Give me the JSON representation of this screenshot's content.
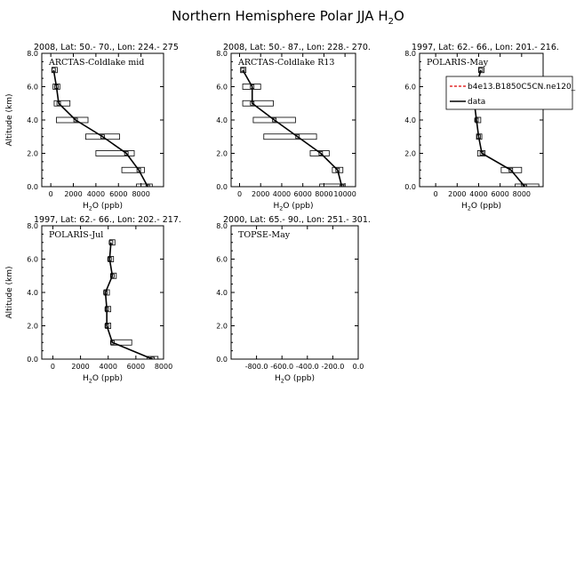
{
  "title": "Northern Hemisphere Polar JJA",
  "title_species": "H",
  "title_sub": "2",
  "title_end": "O",
  "xlabel_prefix": "H",
  "xlabel_sub": "2",
  "xlabel_suffix": "O (ppb)",
  "ylabel": "Altitude (km)",
  "legend": {
    "model_label": "b4e13.B1850C5CN.ne120_",
    "data_label": "data",
    "model_color": "#dd0000",
    "data_color": "#000000"
  },
  "chart_data": [
    {
      "type": "line",
      "header": "2008, Lat:  50.- 70., Lon: 224.- 275",
      "label": "ARCTAS-Coldlake mid",
      "xlim": [
        -800,
        10000
      ],
      "xticks": [
        0,
        2000,
        4000,
        6000,
        8000
      ],
      "ylim": [
        0,
        8
      ],
      "yticks": [
        "0.0",
        "2.0",
        "4.0",
        "6.0",
        "8.0"
      ],
      "series": [
        {
          "x": [
            8600,
            7800,
            6700,
            4600,
            2200,
            700,
            500,
            250
          ],
          "y": [
            0,
            1,
            2,
            3,
            4,
            5,
            6,
            7
          ],
          "xmin": [
            7600,
            6300,
            4000,
            3100,
            500,
            300,
            200,
            100
          ],
          "xmax": [
            9000,
            8300,
            7400,
            6100,
            3300,
            1700,
            800,
            300
          ]
        }
      ],
      "show_legend": false
    },
    {
      "type": "line",
      "header": "2008, Lat:  50.- 87., Lon: 228.- 270.",
      "label": "ARCTAS-Coldlake R13",
      "xlim": [
        -800,
        11000
      ],
      "xticks": [
        0,
        2000,
        4000,
        6000,
        8000,
        10000
      ],
      "ylim": [
        0,
        8
      ],
      "yticks": [
        "0.0",
        "2.0",
        "4.0",
        "6.0",
        "8.0"
      ],
      "series": [
        {
          "x": [
            9700,
            9300,
            7700,
            5500,
            3300,
            1200,
            1200,
            300
          ],
          "y": [
            0,
            1,
            2,
            3,
            4,
            5,
            6,
            7
          ],
          "xmin": [
            7600,
            8800,
            6700,
            2300,
            1300,
            300,
            300,
            100
          ],
          "xmax": [
            10000,
            9800,
            8500,
            7300,
            5300,
            3200,
            2000,
            400
          ]
        }
      ],
      "show_legend": false
    },
    {
      "type": "line",
      "header": "1997, Lat: 62.- 66., Lon: 201.- 216.",
      "label": "POLARIS-May",
      "xlim": [
        -1500,
        10000
      ],
      "xticks": [
        0,
        2000,
        4000,
        6000,
        8000
      ],
      "ylim": [
        0,
        8
      ],
      "yticks": [
        "0.0",
        "2.0",
        "4.0",
        "6.0",
        "8.0"
      ],
      "series": [
        {
          "x": [
            8300,
            7000,
            4300,
            4000,
            3800,
            3600,
            3800,
            4200
          ],
          "y": [
            0,
            1,
            2,
            3,
            4,
            5,
            6,
            7
          ],
          "xmin": [
            7400,
            6100,
            3900,
            3800,
            3700,
            3400,
            3600,
            4000
          ],
          "xmax": [
            9600,
            8000,
            4600,
            4200,
            3900,
            3900,
            4000,
            4400
          ]
        }
      ],
      "show_legend": true
    },
    {
      "type": "line",
      "header": "1997, Lat: 62.- 66., Lon: 202.- 217.",
      "label": "POLARIS-Jul",
      "xlim": [
        -800,
        8000
      ],
      "xticks": [
        0,
        2000,
        4000,
        6000,
        8000
      ],
      "ylim": [
        0,
        8
      ],
      "yticks": [
        "0.0",
        "2.0",
        "4.0",
        "6.0",
        "8.0"
      ],
      "series": [
        {
          "x": [
            7200,
            4300,
            3900,
            3900,
            3800,
            4300,
            4100,
            4200
          ],
          "y": [
            0,
            1,
            2,
            3,
            4,
            5,
            6,
            7
          ],
          "xmin": [
            6800,
            4200,
            3800,
            3800,
            3700,
            4200,
            4000,
            4100
          ],
          "xmax": [
            7600,
            5700,
            4000,
            4000,
            3900,
            4400,
            4300,
            4400
          ]
        }
      ],
      "show_legend": false
    },
    {
      "type": "line",
      "header": "2000, Lat: 65.- 90., Lon: 251.- 301.",
      "label": "TOPSE-May",
      "xlim": [
        -1000,
        0
      ],
      "xticks": [
        -800,
        -600,
        -400,
        -200,
        0
      ],
      "xtick_labels": [
        "-800.0",
        "-600.0",
        "-400.0",
        "-200.0",
        "0.0"
      ],
      "ylim": [
        0,
        8
      ],
      "yticks": [
        "0.0",
        "2.0",
        "4.0",
        "6.0",
        "8.0"
      ],
      "series": [],
      "show_legend": false
    }
  ]
}
